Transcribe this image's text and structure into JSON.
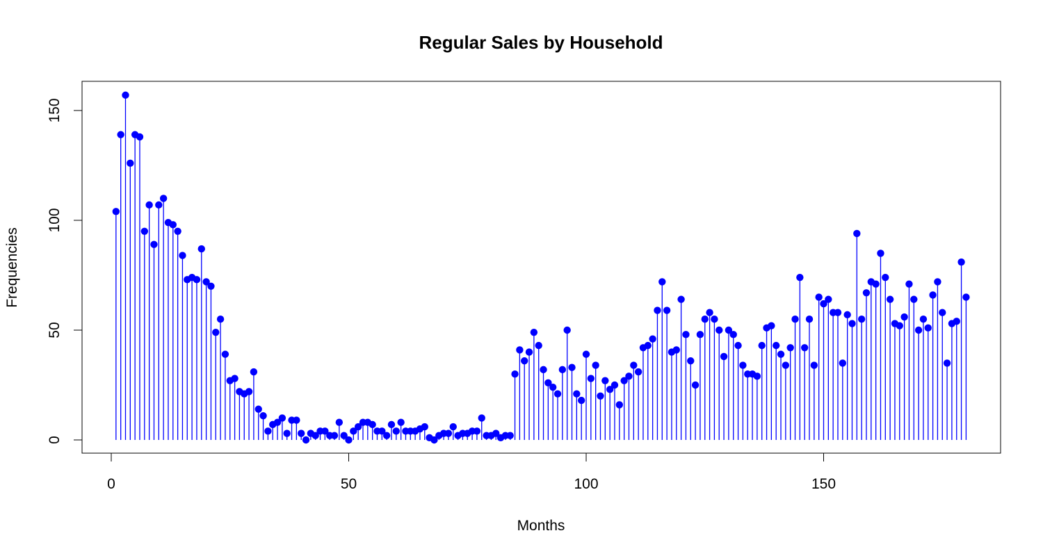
{
  "chart_data": {
    "type": "scatter",
    "plot_style": "lollipop",
    "title": "Regular Sales by Household",
    "xlabel": "Months",
    "ylabel": "Frequencies",
    "xlim": [
      1,
      180
    ],
    "ylim": [
      0,
      157
    ],
    "xticks": [
      0,
      50,
      100,
      150
    ],
    "yticks": [
      0,
      50,
      100,
      150
    ],
    "grid": false,
    "legend": "none",
    "color": "#0000ff",
    "x_start": 1,
    "values": [
      104,
      139,
      157,
      126,
      139,
      138,
      95,
      107,
      89,
      107,
      110,
      99,
      98,
      95,
      84,
      73,
      74,
      73,
      87,
      72,
      70,
      49,
      55,
      39,
      27,
      28,
      22,
      21,
      22,
      31,
      14,
      11,
      4,
      7,
      8,
      10,
      3,
      9,
      9,
      3,
      0,
      3,
      2,
      4,
      4,
      2,
      2,
      8,
      2,
      0,
      4,
      6,
      8,
      8,
      7,
      4,
      4,
      2,
      7,
      4,
      8,
      4,
      4,
      4,
      5,
      6,
      1,
      0,
      2,
      3,
      3,
      6,
      2,
      3,
      3,
      4,
      4,
      10,
      2,
      2,
      3,
      1,
      2,
      2,
      30,
      41,
      36,
      40,
      49,
      43,
      32,
      26,
      24,
      21,
      32,
      50,
      33,
      21,
      18,
      39,
      28,
      34,
      20,
      27,
      23,
      25,
      16,
      27,
      29,
      34,
      31,
      42,
      43,
      46,
      59,
      72,
      59,
      40,
      41,
      64,
      48,
      36,
      25,
      48,
      55,
      58,
      55,
      50,
      38,
      50,
      48,
      43,
      34,
      30,
      30,
      29,
      43,
      51,
      52,
      43,
      39,
      34,
      42,
      55,
      74,
      42,
      55,
      34,
      65,
      62,
      64,
      58,
      58,
      35,
      57,
      53,
      94,
      55,
      67,
      72,
      71,
      85,
      74,
      64,
      53,
      52,
      56,
      71,
      64,
      50,
      55,
      51,
      66,
      72,
      58,
      35,
      53,
      54,
      81,
      65
    ]
  }
}
